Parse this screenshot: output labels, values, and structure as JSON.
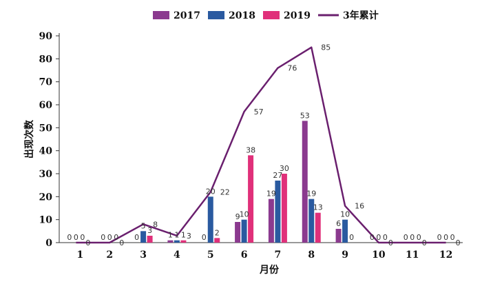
{
  "chart_data": {
    "type": "bar",
    "categories": [
      "1",
      "2",
      "3",
      "4",
      "5",
      "6",
      "7",
      "8",
      "9",
      "10",
      "11",
      "12"
    ],
    "series": [
      {
        "name": "2017",
        "type": "bar",
        "color": "#8b3a8f",
        "values": [
          0,
          0,
          0,
          1,
          0,
          9,
          19,
          53,
          6,
          0,
          0,
          0
        ]
      },
      {
        "name": "2018",
        "type": "bar",
        "color": "#2a5aa0",
        "values": [
          0,
          0,
          5,
          1,
          20,
          10,
          27,
          19,
          10,
          0,
          0,
          0
        ]
      },
      {
        "name": "2019",
        "type": "bar",
        "color": "#e0307a",
        "values": [
          0,
          0,
          3,
          1,
          2,
          38,
          30,
          13,
          0,
          0,
          0,
          0
        ]
      },
      {
        "name": "3年累计",
        "type": "line",
        "color": "#6a1f6e",
        "values": [
          0,
          0,
          8,
          3,
          22,
          57,
          76,
          85,
          16,
          0,
          0,
          0
        ]
      }
    ],
    "xlabel": "月份",
    "ylabel": "出现次数",
    "ylim": [
      0,
      90
    ],
    "yticks": [
      0,
      10,
      20,
      30,
      40,
      50,
      60,
      70,
      80,
      90
    ],
    "grid": false,
    "legend_position": "top"
  }
}
